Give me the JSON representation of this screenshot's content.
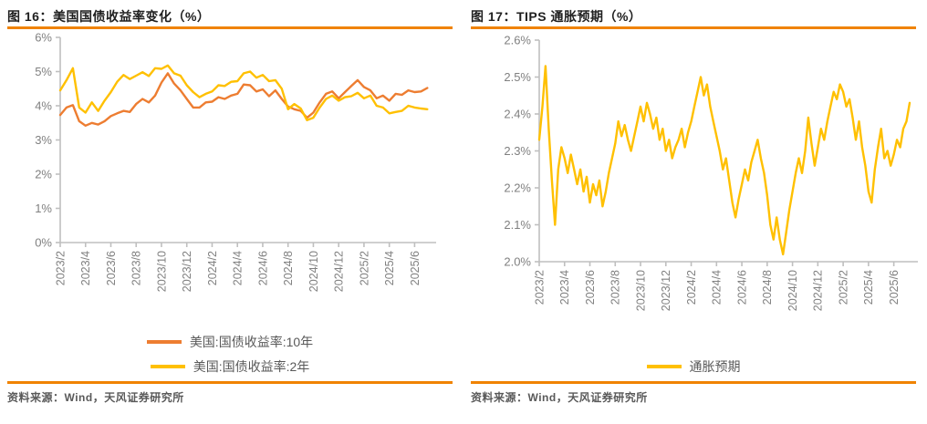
{
  "colors": {
    "accent_rule": "#F08300",
    "axis_line": "#BFBFBF",
    "tick_label": "#808080",
    "title_text": "#1F1F1F",
    "muted_text": "#595959",
    "series_orange": "#ED7D31",
    "series_yellow": "#FFC000"
  },
  "figures": [
    {
      "title": "图 16：美国国债收益率变化（%）",
      "source": "资料来源：Wind，天风证券研究所",
      "legend": [
        {
          "label": "美国:国债收益率:10年",
          "color": "#ED7D31"
        },
        {
          "label": "美国:国债收益率:2年",
          "color": "#FFC000"
        }
      ],
      "chart_data": {
        "type": "line",
        "title": "美国国债收益率变化（%）",
        "xlabel": "",
        "ylabel": "",
        "grid": false,
        "legend_position": "bottom",
        "ylim": [
          0,
          6
        ],
        "y_tick_values": [
          0,
          1,
          2,
          3,
          4,
          5,
          6
        ],
        "y_tick_labels": [
          "0%",
          "1%",
          "2%",
          "3%",
          "4%",
          "5%",
          "6%"
        ],
        "x_tick_labels": [
          "2023/2",
          "2023/4",
          "2023/6",
          "2023/8",
          "2023/10",
          "2023/12",
          "2024/2",
          "2024/4",
          "2024/6",
          "2024/8",
          "2024/10",
          "2024/12",
          "2025/2",
          "2025/4",
          "2025/6"
        ],
        "x_tick_months": [
          0,
          2,
          4,
          6,
          8,
          10,
          12,
          14,
          16,
          18,
          20,
          22,
          24,
          26,
          28
        ],
        "xlim_months": [
          0,
          29.7
        ],
        "x_month_start": 0,
        "x_month_step": 0.5,
        "series": [
          {
            "name": "美国:国债收益率:10年",
            "color": "#ED7D31",
            "values": [
              3.73,
              3.95,
              4.02,
              3.55,
              3.42,
              3.5,
              3.45,
              3.55,
              3.7,
              3.78,
              3.85,
              3.82,
              4.05,
              4.2,
              4.1,
              4.3,
              4.68,
              4.95,
              4.65,
              4.45,
              4.2,
              3.95,
              3.95,
              4.1,
              4.12,
              4.25,
              4.2,
              4.3,
              4.35,
              4.62,
              4.6,
              4.42,
              4.48,
              4.28,
              4.45,
              4.2,
              3.98,
              3.9,
              3.85,
              3.65,
              3.8,
              4.1,
              4.35,
              4.42,
              4.22,
              4.4,
              4.58,
              4.75,
              4.55,
              4.45,
              4.22,
              4.3,
              4.15,
              4.35,
              4.32,
              4.45,
              4.4,
              4.42,
              4.52
            ]
          },
          {
            "name": "美国:国债收益率:2年",
            "color": "#FFC000",
            "values": [
              4.45,
              4.75,
              5.1,
              3.95,
              3.8,
              4.1,
              3.85,
              4.15,
              4.4,
              4.7,
              4.9,
              4.78,
              4.88,
              4.98,
              4.87,
              5.1,
              5.08,
              5.18,
              4.95,
              4.88,
              4.6,
              4.4,
              4.25,
              4.35,
              4.42,
              4.6,
              4.58,
              4.7,
              4.72,
              4.95,
              5.0,
              4.82,
              4.9,
              4.72,
              4.75,
              4.5,
              3.9,
              4.05,
              3.92,
              3.58,
              3.65,
              3.95,
              4.2,
              4.3,
              4.15,
              4.25,
              4.28,
              4.38,
              4.22,
              4.3,
              4.0,
              3.95,
              3.78,
              3.82,
              3.85,
              4.0,
              3.95,
              3.92,
              3.9
            ]
          }
        ]
      }
    },
    {
      "title": "图 17：TIPS 通胀预期（%）",
      "source": "资料来源：Wind，天风证券研究所",
      "legend": [
        {
          "label": "通胀预期",
          "color": "#FFC000"
        }
      ],
      "chart_data": {
        "type": "line",
        "title": "TIPS 通胀预期（%）",
        "xlabel": "",
        "ylabel": "",
        "grid": false,
        "legend_position": "bottom",
        "ylim": [
          2.0,
          2.6
        ],
        "y_tick_values": [
          2.0,
          2.1,
          2.2,
          2.3,
          2.4,
          2.5,
          2.6
        ],
        "y_tick_labels": [
          "2.0%",
          "2.1%",
          "2.2%",
          "2.3%",
          "2.4%",
          "2.5%",
          "2.6%"
        ],
        "x_tick_labels": [
          "2023/2",
          "2023/4",
          "2023/6",
          "2023/8",
          "2023/10",
          "2023/12",
          "2024/2",
          "2024/4",
          "2024/6",
          "2024/8",
          "2024/10",
          "2024/12",
          "2025/2",
          "2025/4",
          "2025/6"
        ],
        "x_tick_months": [
          0,
          2,
          4,
          6,
          8,
          10,
          12,
          14,
          16,
          18,
          20,
          22,
          24,
          26,
          28
        ],
        "xlim_months": [
          0,
          29.9
        ],
        "x_month_start": 0,
        "x_month_step": 0.25,
        "series": [
          {
            "name": "通胀预期",
            "color": "#FFC000",
            "values": [
              2.33,
              2.42,
              2.53,
              2.36,
              2.22,
              2.1,
              2.25,
              2.31,
              2.28,
              2.24,
              2.29,
              2.25,
              2.21,
              2.25,
              2.19,
              2.23,
              2.16,
              2.21,
              2.18,
              2.22,
              2.15,
              2.19,
              2.24,
              2.28,
              2.32,
              2.38,
              2.34,
              2.37,
              2.33,
              2.3,
              2.34,
              2.38,
              2.42,
              2.38,
              2.43,
              2.4,
              2.36,
              2.39,
              2.33,
              2.36,
              2.3,
              2.33,
              2.28,
              2.31,
              2.33,
              2.36,
              2.31,
              2.35,
              2.38,
              2.42,
              2.46,
              2.5,
              2.45,
              2.48,
              2.42,
              2.38,
              2.34,
              2.3,
              2.25,
              2.28,
              2.22,
              2.16,
              2.12,
              2.17,
              2.21,
              2.25,
              2.22,
              2.27,
              2.3,
              2.33,
              2.28,
              2.24,
              2.18,
              2.1,
              2.06,
              2.12,
              2.06,
              2.02,
              2.08,
              2.14,
              2.19,
              2.24,
              2.28,
              2.24,
              2.3,
              2.39,
              2.32,
              2.26,
              2.31,
              2.36,
              2.33,
              2.38,
              2.42,
              2.46,
              2.44,
              2.48,
              2.46,
              2.42,
              2.44,
              2.39,
              2.33,
              2.38,
              2.31,
              2.26,
              2.19,
              2.16,
              2.25,
              2.31,
              2.36,
              2.28,
              2.3,
              2.26,
              2.29,
              2.33,
              2.31,
              2.36,
              2.38,
              2.43
            ]
          }
        ]
      }
    }
  ]
}
